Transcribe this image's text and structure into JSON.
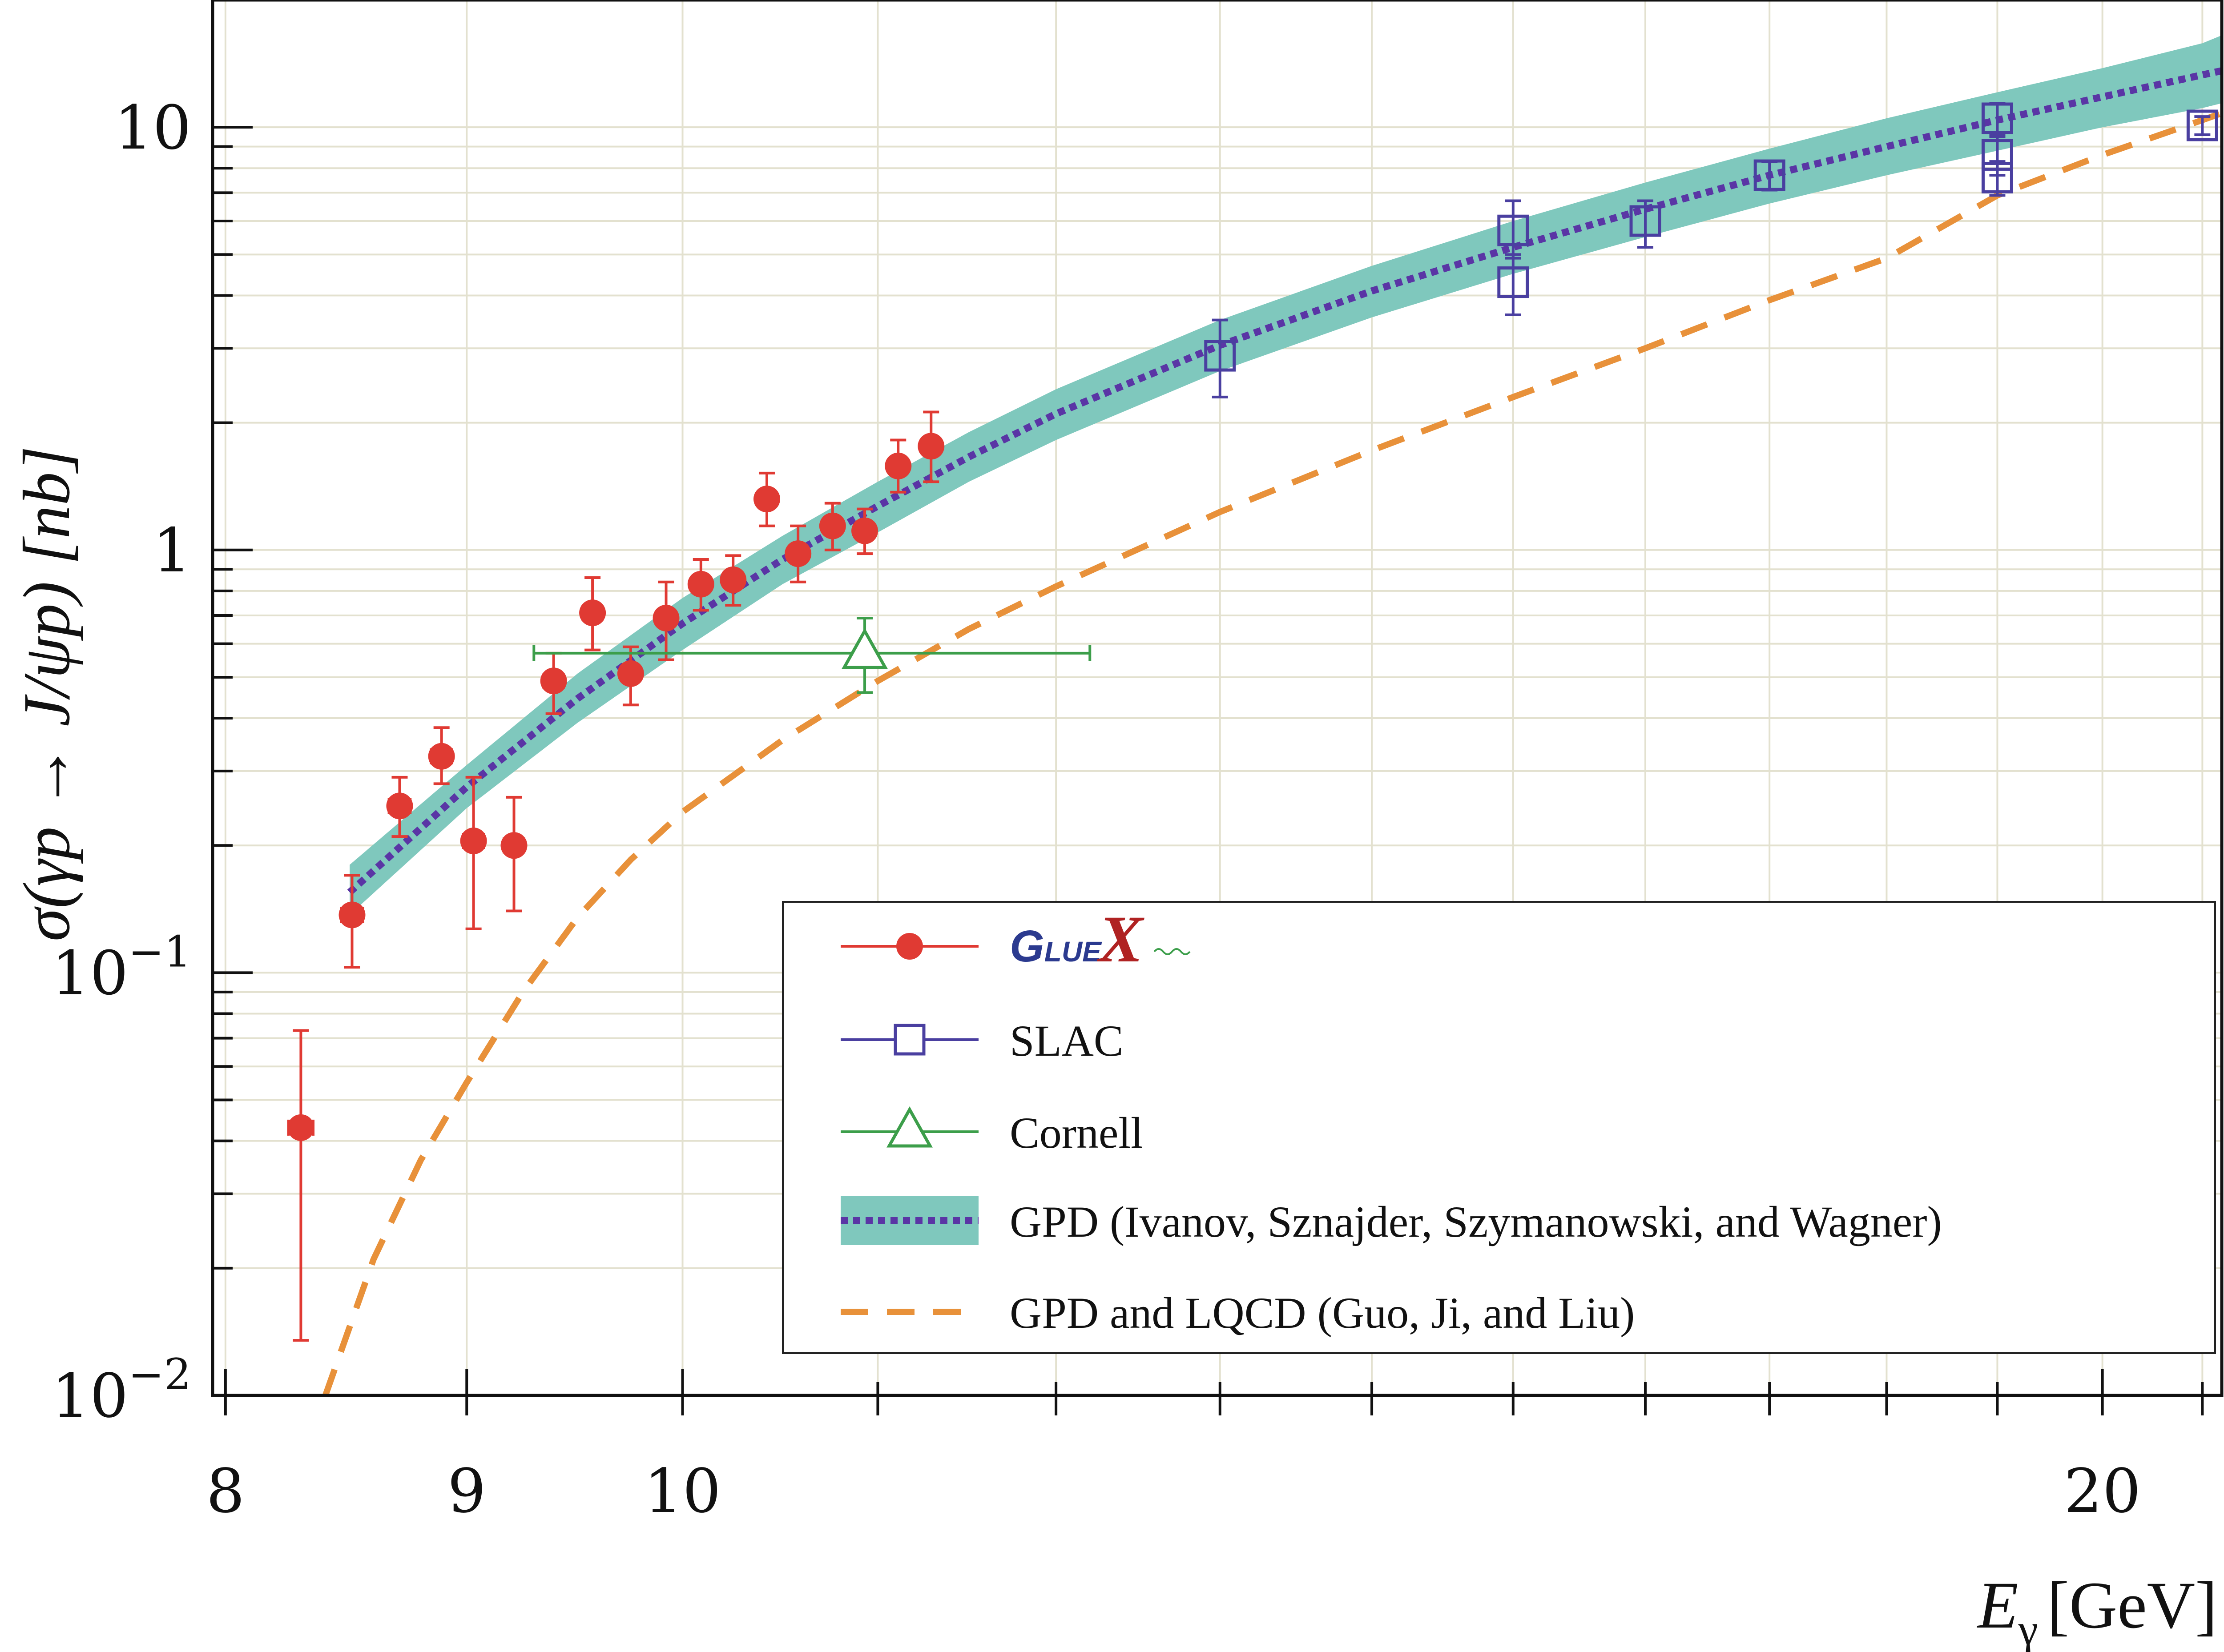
{
  "chart_data": {
    "type": "scatter",
    "xlabel": "E_γ [GeV]",
    "xlabel_main": "E",
    "xlabel_sub": "γ",
    "xlabel_unit": "[GeV]",
    "ylabel": "σ(γp → J/ψp) [nb]",
    "xscale": "log",
    "yscale": "log",
    "xlim": [
      7.95,
      21.2
    ],
    "ylim": [
      0.01,
      20
    ],
    "x_ticks": [
      8,
      9,
      10,
      20
    ],
    "x_tick_labels": [
      "8",
      "9",
      "10",
      "20"
    ],
    "y_ticks": [
      0.01,
      0.1,
      1,
      10
    ],
    "y_tick_labels": [
      {
        "base": "10",
        "exp": "−2"
      },
      {
        "base": "10",
        "exp": "−1"
      },
      {
        "base": "1",
        "exp": ""
      },
      {
        "base": "10",
        "exp": ""
      }
    ],
    "grid": true,
    "legend_position": "bottom-right",
    "legend": [
      {
        "label": "GlueX",
        "logo_text": [
          "G",
          "LUE",
          "X"
        ],
        "style": "filled-circle",
        "color": "#e03a33"
      },
      {
        "label": "SLAC",
        "style": "open-square",
        "color": "#4a3fa0"
      },
      {
        "label": "Cornell",
        "style": "open-triangle",
        "color": "#3c9e4a"
      },
      {
        "label": "GPD (Ivanov, Sznajder, Szymanowski, and Wagner)",
        "style": "band-dotted",
        "color": "#5a35a5",
        "band_color": "#7fc8bd"
      },
      {
        "label": "GPD and LQCD (Guo, Ji, and Liu)",
        "style": "dashed",
        "color": "#e8913a"
      }
    ],
    "series": [
      {
        "name": "GlueX",
        "color": "#e03a33",
        "points": [
          {
            "x": 8.3,
            "y": 0.043,
            "ylo": 0.0135,
            "yhi": 0.073,
            "xerr": 0.05
          },
          {
            "x": 8.51,
            "y": 0.137,
            "ylo": 0.103,
            "yhi": 0.17,
            "xerr": 0.045
          },
          {
            "x": 8.71,
            "y": 0.248,
            "ylo": 0.21,
            "yhi": 0.29,
            "xerr": 0.045
          },
          {
            "x": 8.89,
            "y": 0.325,
            "ylo": 0.28,
            "yhi": 0.38,
            "xerr": 0.045
          },
          {
            "x": 9.03,
            "y": 0.205,
            "ylo": 0.127,
            "yhi": 0.29,
            "xerr": 0.045
          },
          {
            "x": 9.21,
            "y": 0.2,
            "ylo": 0.14,
            "yhi": 0.26,
            "xerr": 0.045
          },
          {
            "x": 9.39,
            "y": 0.49,
            "ylo": 0.41,
            "yhi": 0.57,
            "xerr": 0.045
          },
          {
            "x": 9.57,
            "y": 0.71,
            "ylo": 0.58,
            "yhi": 0.86,
            "xerr": 0.045
          },
          {
            "x": 9.75,
            "y": 0.51,
            "ylo": 0.43,
            "yhi": 0.59,
            "xerr": 0.045
          },
          {
            "x": 9.92,
            "y": 0.69,
            "ylo": 0.55,
            "yhi": 0.84,
            "xerr": 0.045
          },
          {
            "x": 10.09,
            "y": 0.83,
            "ylo": 0.72,
            "yhi": 0.95,
            "xerr": 0.045
          },
          {
            "x": 10.25,
            "y": 0.85,
            "ylo": 0.74,
            "yhi": 0.97,
            "xerr": 0.045
          },
          {
            "x": 10.42,
            "y": 1.32,
            "ylo": 1.14,
            "yhi": 1.52,
            "xerr": 0.045
          },
          {
            "x": 10.58,
            "y": 0.98,
            "ylo": 0.84,
            "yhi": 1.14,
            "xerr": 0.045
          },
          {
            "x": 10.76,
            "y": 1.14,
            "ylo": 1.0,
            "yhi": 1.29,
            "xerr": 0.045
          },
          {
            "x": 10.93,
            "y": 1.11,
            "ylo": 0.98,
            "yhi": 1.25,
            "xerr": 0.045
          },
          {
            "x": 11.11,
            "y": 1.58,
            "ylo": 1.37,
            "yhi": 1.82,
            "xerr": 0.045
          },
          {
            "x": 11.29,
            "y": 1.76,
            "ylo": 1.45,
            "yhi": 2.12,
            "xerr": 0.045
          }
        ]
      },
      {
        "name": "SLAC",
        "color": "#4a3fa0",
        "points": [
          {
            "x": 13.0,
            "y": 2.88,
            "ylo": 2.3,
            "yhi": 3.5
          },
          {
            "x": 15.0,
            "y": 5.7,
            "ylo": 4.9,
            "yhi": 6.7
          },
          {
            "x": 15.0,
            "y": 4.3,
            "ylo": 3.6,
            "yhi": 5.0
          },
          {
            "x": 16.0,
            "y": 6.0,
            "ylo": 5.2,
            "yhi": 6.7
          },
          {
            "x": 17.0,
            "y": 7.7,
            "ylo": 7.1,
            "yhi": 8.3
          },
          {
            "x": 19.0,
            "y": 10.5,
            "ylo": 9.6,
            "yhi": 11.4
          },
          {
            "x": 19.0,
            "y": 8.6,
            "ylo": 7.7,
            "yhi": 9.5
          },
          {
            "x": 19.0,
            "y": 7.6,
            "ylo": 6.9,
            "yhi": 8.3
          },
          {
            "x": 21.0,
            "y": 10.1,
            "ylo": 9.6,
            "yhi": 10.6
          }
        ]
      },
      {
        "name": "Cornell",
        "color": "#3c9e4a",
        "points": [
          {
            "x": 10.93,
            "y": 0.57,
            "ylo": 0.46,
            "yhi": 0.69,
            "xlo": 9.3,
            "xhi": 12.2
          }
        ]
      }
    ],
    "bands": [
      {
        "name": "GPD (Ivanov, Sznajder, Szymanowski, and Wagner)",
        "color": "#7fc8bd",
        "x": [
          8.5,
          9.0,
          9.5,
          10.0,
          10.5,
          11.0,
          11.5,
          12.0,
          13.0,
          14.0,
          15.0,
          16.0,
          17.0,
          18.0,
          19.0,
          20.0,
          21.0,
          21.2
        ],
        "lower": [
          0.137,
          0.245,
          0.39,
          0.58,
          0.83,
          1.1,
          1.45,
          1.82,
          2.65,
          3.55,
          4.5,
          5.5,
          6.6,
          7.7,
          8.8,
          10.0,
          11.1,
          11.4
        ],
        "upper": [
          0.18,
          0.31,
          0.51,
          0.77,
          1.08,
          1.45,
          1.9,
          2.4,
          3.5,
          4.7,
          6.0,
          7.4,
          8.9,
          10.5,
          12.1,
          13.8,
          15.8,
          16.5
        ]
      }
    ],
    "curves": [
      {
        "name": "GPD (Ivanov, Sznajder, Szymanowski, and Wagner)",
        "style": "dotted",
        "color": "#5a35a5",
        "x": [
          8.5,
          9.0,
          9.5,
          10.0,
          10.5,
          11.0,
          11.5,
          12.0,
          13.0,
          14.0,
          15.0,
          16.0,
          17.0,
          18.0,
          19.0,
          20.0,
          21.0,
          21.2
        ],
        "y": [
          0.155,
          0.275,
          0.445,
          0.67,
          0.95,
          1.27,
          1.66,
          2.1,
          3.05,
          4.1,
          5.2,
          6.4,
          7.7,
          9.0,
          10.4,
          11.8,
          13.3,
          13.6
        ]
      },
      {
        "name": "GPD and LQCD (Guo, Ji, and Liu)",
        "style": "dashed",
        "color": "#e8913a",
        "x": [
          8.4,
          8.6,
          8.8,
          9.0,
          9.25,
          9.5,
          9.75,
          10.0,
          10.5,
          11.0,
          11.5,
          12.0,
          13.0,
          14.0,
          15.0,
          16.0,
          17.0,
          18.0,
          19.0,
          20.0,
          21.0,
          21.2
        ],
        "y": [
          0.01,
          0.021,
          0.036,
          0.055,
          0.09,
          0.135,
          0.185,
          0.24,
          0.355,
          0.49,
          0.65,
          0.82,
          1.23,
          1.72,
          2.3,
          3.0,
          3.9,
          4.9,
          6.9,
          8.6,
          10.4,
          10.8
        ]
      }
    ]
  }
}
